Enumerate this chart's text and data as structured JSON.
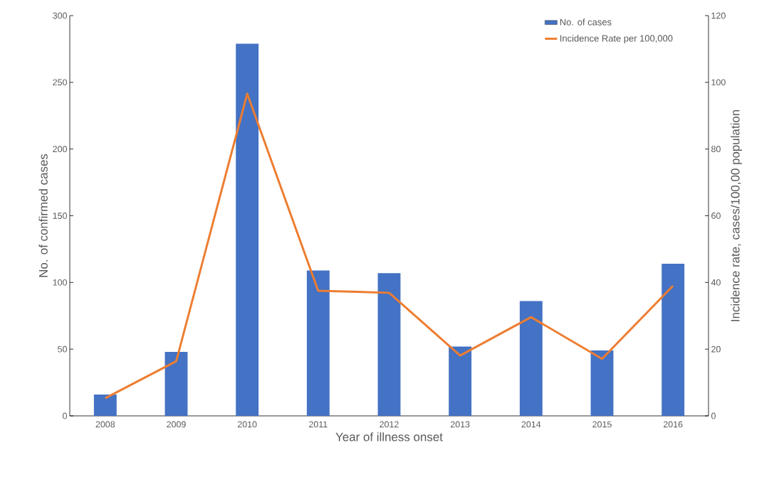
{
  "chart_data": {
    "type": "bar",
    "xlabel": "Year of illness onset",
    "ylabel": "No. of confirmed cases",
    "y2label": "Incidence rate, cases/100,00 population",
    "categories": [
      "2008",
      "2009",
      "2010",
      "2011",
      "2012",
      "2013",
      "2014",
      "2015",
      "2016"
    ],
    "series": [
      {
        "name": "No. of cases",
        "color": "#4472c4",
        "values": [
          16,
          48,
          279,
          109,
          107,
          52,
          86,
          49,
          114
        ]
      },
      {
        "name": "Incidence Rate per 100,000",
        "type": "line",
        "axis": "y2",
        "color": "#ed7d31",
        "values": [
          5.3,
          16.4,
          96.6,
          37.5,
          36.9,
          18.1,
          29.6,
          17.1,
          39
        ]
      }
    ],
    "ylim": [
      0,
      300
    ],
    "yticks": [
      0,
      50,
      100,
      150,
      200,
      250,
      300
    ],
    "y2lim": [
      0,
      120
    ],
    "y2ticks": [
      0,
      20,
      40,
      60,
      80,
      100,
      120
    ],
    "legend": "top right",
    "grid": false,
    "marker": "none",
    "line_style": "solid"
  }
}
